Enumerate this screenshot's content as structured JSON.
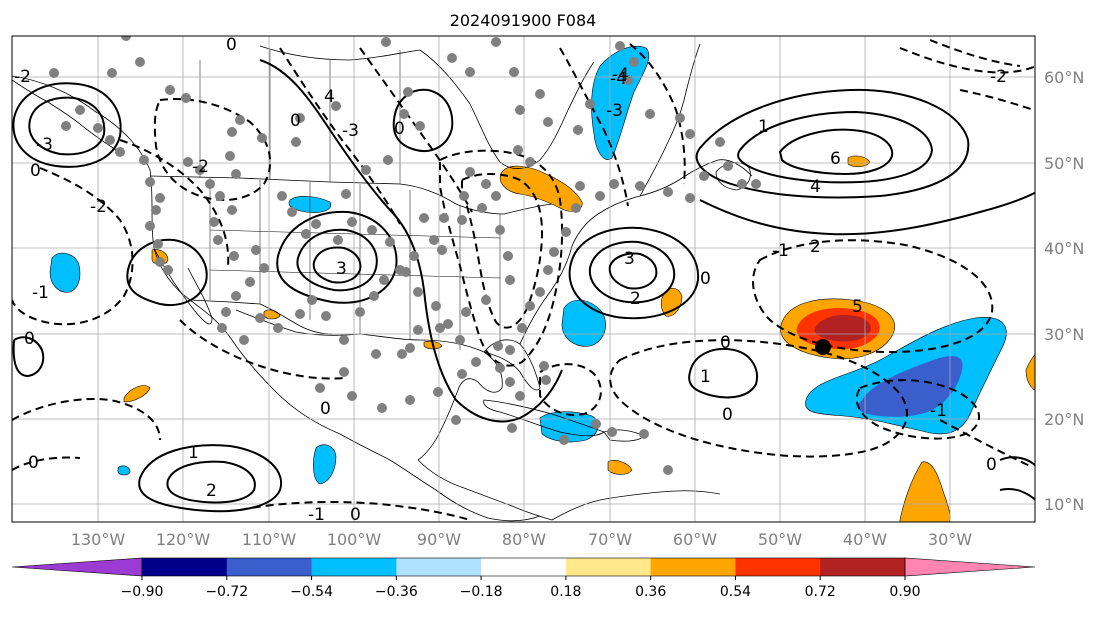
{
  "title": "2024091900 F084",
  "map": {
    "lat_labels": [
      "60°N",
      "50°N",
      "40°N",
      "30°N",
      "20°N",
      "10°N"
    ],
    "lon_labels": [
      "130°W",
      "120°W",
      "110°W",
      "100°W",
      "90°W",
      "80°W",
      "70°W",
      "60°W",
      "50°W",
      "40°W",
      "30°W"
    ],
    "contour_labels": {
      "positive": [
        "3",
        "2",
        "1",
        "6",
        "4",
        "3",
        "2",
        "1",
        "1",
        "2",
        "4",
        "5"
      ],
      "negative": [
        "-2",
        "-3",
        "-4",
        "-1",
        "-2",
        "-3",
        "-1",
        "-2",
        "-1",
        "-2",
        "-1",
        "-3",
        "-4"
      ],
      "zero": [
        "0",
        "0",
        "0",
        "0",
        "0",
        "0",
        "0",
        "0",
        "0",
        "0",
        "0",
        "0"
      ]
    },
    "colors": {
      "positive_contour": "#000000",
      "negative_contour": "#000000",
      "grid": "#aaaaaa",
      "coast": "#000000",
      "station_dot": "#808080",
      "tick_label": "#808080"
    }
  },
  "colorbar": {
    "tick_labels": [
      "−0.90",
      "−0.72",
      "−0.54",
      "−0.36",
      "−0.18",
      "0.18",
      "0.36",
      "0.54",
      "0.72",
      "0.90"
    ],
    "colors": [
      "#9b3bd3",
      "#00008b",
      "#3a5fcd",
      "#00bfff",
      "#b0e2ff",
      "#ffffff",
      "#ffe88a",
      "#ffa500",
      "#ff3300",
      "#b22222",
      "#ff85b0"
    ]
  }
}
